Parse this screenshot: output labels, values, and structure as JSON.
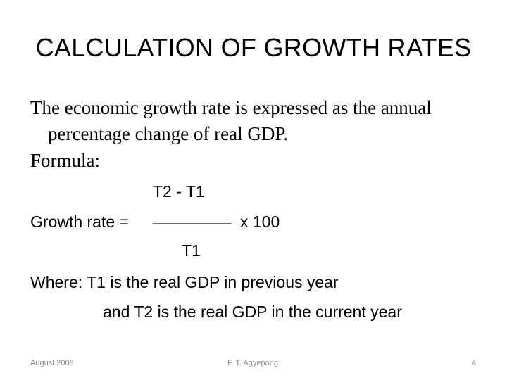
{
  "title": "CALCULATION OF GROWTH RATES",
  "body": {
    "line1": "The economic growth rate is expressed as the annual",
    "line2": "percentage change of real GDP.",
    "formula_label": "Formula:"
  },
  "formula": {
    "numerator": "T2  - T1",
    "lhs": "Growth rate =",
    "multiplier": "x  100",
    "denominator": "T1"
  },
  "where": {
    "line1": "Where: T1 is the real GDP in previous year",
    "line2": "and T2  is the real GDP in the current year"
  },
  "footer": {
    "date": "August 2009",
    "author": "F. T. Agyepong",
    "page": "4"
  }
}
